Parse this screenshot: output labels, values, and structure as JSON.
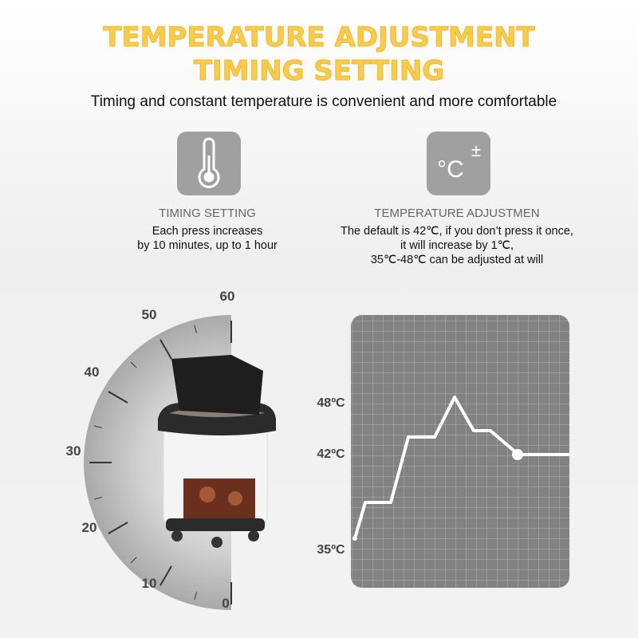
{
  "header": {
    "title_line1": "TEMPERATURE ADJUSTMENT",
    "title_line2": "TIMING SETTING",
    "subtitle": "Timing and constant temperature is convenient and more comfortable"
  },
  "features": [
    {
      "icon_text": null,
      "title": "TIMING SETTING",
      "lines": [
        "Each press increases",
        "by 10 minutes, up to 1 hour"
      ]
    },
    {
      "icon_text": [
        "°C",
        "±"
      ],
      "title": "TEMPERATURE ADJUSTMEN",
      "lines": [
        "The default is 42℃, if you don’t press it once,",
        "it will increase by 1℃,",
        "35℃-48℃ can be adjusted at will"
      ]
    }
  ],
  "dial": {
    "labels": [
      "0",
      "10",
      "20",
      "30",
      "40",
      "50",
      "60"
    ]
  },
  "graph": {
    "labels": [
      "48ºC",
      "42ºC",
      "35ºC"
    ]
  }
}
